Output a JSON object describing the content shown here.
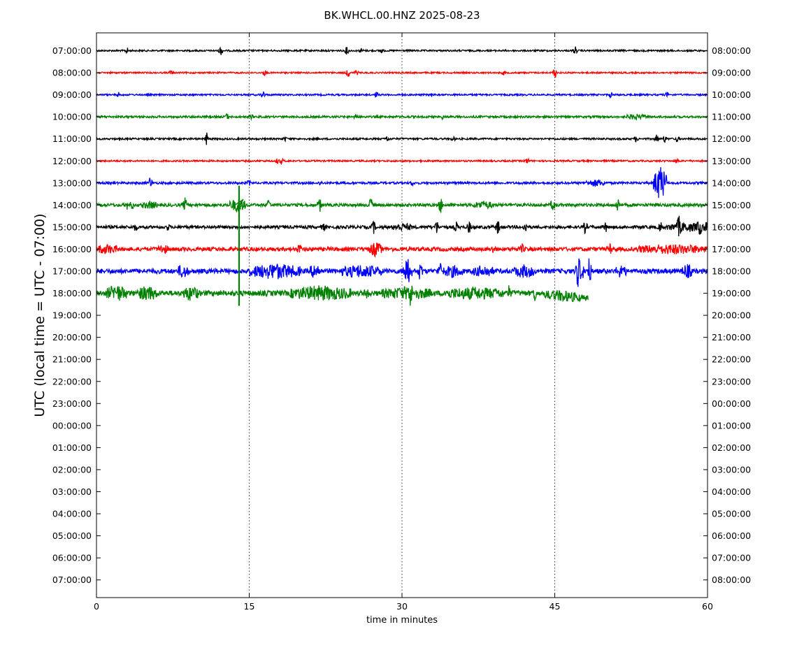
{
  "chart_data": {
    "type": "line",
    "title": "BK.WHCL.00.HNZ 2025-08-23",
    "xlabel": "time in minutes",
    "ylabel": "UTC (local time = UTC - 07:00)",
    "xlim": [
      0,
      60
    ],
    "x_ticks": [
      0,
      15,
      30,
      45,
      60
    ],
    "x_tick_labels": [
      "0",
      "15",
      "30",
      "45",
      "60"
    ],
    "grid": "vertical dotted lines at 15, 30, 45",
    "left_tick_labels": [
      "07:00:00",
      "08:00:00",
      "09:00:00",
      "10:00:00",
      "11:00:00",
      "12:00:00",
      "13:00:00",
      "14:00:00",
      "15:00:00",
      "16:00:00",
      "17:00:00",
      "18:00:00",
      "19:00:00",
      "20:00:00",
      "21:00:00",
      "22:00:00",
      "23:00:00",
      "00:00:00",
      "01:00:00",
      "02:00:00",
      "03:00:00",
      "04:00:00",
      "05:00:00",
      "06:00:00",
      "07:00:00"
    ],
    "right_tick_labels": [
      "08:00:00",
      "09:00:00",
      "10:00:00",
      "11:00:00",
      "12:00:00",
      "13:00:00",
      "14:00:00",
      "15:00:00",
      "16:00:00",
      "17:00:00",
      "18:00:00",
      "19:00:00",
      "20:00:00",
      "21:00:00",
      "22:00:00",
      "23:00:00",
      "00:00:00",
      "01:00:00",
      "02:00:00",
      "03:00:00",
      "04:00:00",
      "05:00:00",
      "06:00:00",
      "07:00:00",
      "08:00:00"
    ],
    "series": [
      {
        "row": 0,
        "color": "#000000",
        "end_minute": 60,
        "noise": 1.2,
        "spikes": [
          [
            3,
            4
          ],
          [
            12.2,
            7
          ],
          [
            24.6,
            6
          ],
          [
            26,
            3
          ],
          [
            47,
            6
          ],
          [
            28,
            3
          ]
        ],
        "bursts": []
      },
      {
        "row": 1,
        "color": "#ff0000",
        "end_minute": 60,
        "noise": 1.1,
        "spikes": [
          [
            7.3,
            3
          ],
          [
            16.5,
            4
          ],
          [
            24.7,
            7
          ],
          [
            25.5,
            4
          ],
          [
            40,
            3
          ],
          [
            45,
            8
          ]
        ],
        "bursts": []
      },
      {
        "row": 2,
        "color": "#0000ff",
        "end_minute": 60,
        "noise": 1.2,
        "spikes": [
          [
            2.2,
            3
          ],
          [
            16.3,
            7
          ],
          [
            27.5,
            4
          ],
          [
            33,
            3
          ],
          [
            50.5,
            4
          ],
          [
            56,
            3
          ]
        ],
        "bursts": []
      },
      {
        "row": 3,
        "color": "#008000",
        "end_minute": 60,
        "noise": 1.5,
        "spikes": [
          [
            12.8,
            4
          ],
          [
            15.2,
            3
          ],
          [
            25.5,
            4
          ],
          [
            34,
            3
          ]
        ],
        "bursts": [
          [
            52,
            54,
            3
          ]
        ]
      },
      {
        "row": 4,
        "color": "#000000",
        "end_minute": 60,
        "noise": 1.3,
        "spikes": [
          [
            10.8,
            9
          ],
          [
            18.5,
            3
          ],
          [
            28.5,
            4
          ],
          [
            35,
            3
          ],
          [
            53,
            4
          ],
          [
            55,
            6
          ],
          [
            55.8,
            5
          ],
          [
            57,
            4
          ]
        ],
        "bursts": []
      },
      {
        "row": 5,
        "color": "#ff0000",
        "end_minute": 60,
        "noise": 1.2,
        "spikes": [
          [
            17.8,
            4
          ],
          [
            18.2,
            3
          ],
          [
            42.3,
            4
          ],
          [
            57,
            3
          ]
        ],
        "bursts": []
      },
      {
        "row": 6,
        "color": "#0000ff",
        "end_minute": 60,
        "noise": 1.6,
        "spikes": [
          [
            5.3,
            9
          ],
          [
            15,
            4
          ],
          [
            22,
            3
          ],
          [
            31,
            3
          ]
        ],
        "bursts": [
          [
            48,
            50,
            4
          ],
          [
            54.7,
            56,
            25
          ]
        ]
      },
      {
        "row": 7,
        "color": "#008000",
        "end_minute": 60,
        "noise": 2.2,
        "spikes": [
          [
            3.5,
            6
          ],
          [
            8.7,
            10
          ],
          [
            16.9,
            8
          ],
          [
            21.9,
            10
          ],
          [
            26.9,
            12
          ],
          [
            33.8,
            11
          ],
          [
            44.8,
            11
          ],
          [
            51.2,
            10
          ],
          [
            3,
            5
          ]
        ],
        "bursts": [
          [
            4.5,
            6,
            4
          ],
          [
            13,
            14.7,
            8
          ],
          [
            37,
            39,
            4
          ]
        ]
      },
      {
        "row": 8,
        "color": "#000000",
        "end_minute": 60,
        "noise": 2.2,
        "spikes": [
          [
            3.8,
            5
          ],
          [
            7,
            4
          ],
          [
            22.3,
            5
          ],
          [
            27.2,
            9
          ],
          [
            33.4,
            9
          ],
          [
            35.3,
            7
          ],
          [
            36.6,
            8
          ],
          [
            39.4,
            10
          ],
          [
            42.1,
            8
          ],
          [
            48,
            9
          ],
          [
            50,
            7
          ],
          [
            55.4,
            7
          ],
          [
            57.2,
            12
          ],
          [
            59.2,
            11
          ],
          [
            59.8,
            5
          ]
        ],
        "bursts": [
          [
            29,
            31,
            4
          ],
          [
            56,
            60,
            5
          ]
        ]
      },
      {
        "row": 9,
        "color": "#ff0000",
        "end_minute": 60,
        "noise": 2.8,
        "spikes": [
          [
            19.9,
            8
          ],
          [
            39,
            6
          ],
          [
            41.8,
            6
          ],
          [
            50.4,
            7
          ]
        ],
        "bursts": [
          [
            0,
            2,
            5
          ],
          [
            6,
            7,
            5
          ],
          [
            26.8,
            28,
            9
          ],
          [
            53,
            60,
            5
          ]
        ]
      },
      {
        "row": 10,
        "color": "#0000ff",
        "end_minute": 60,
        "noise": 3.4,
        "spikes": [
          [
            30.5,
            18
          ],
          [
            31.8,
            14
          ],
          [
            33.7,
            13
          ],
          [
            47.3,
            16
          ],
          [
            48.4,
            20
          ]
        ],
        "bursts": [
          [
            8,
            9,
            8
          ],
          [
            15,
            20,
            9
          ],
          [
            21,
            22,
            9
          ],
          [
            24,
            28,
            7
          ],
          [
            30,
            31,
            10
          ],
          [
            34,
            36,
            6
          ],
          [
            37,
            39,
            6
          ],
          [
            41,
            43,
            7
          ],
          [
            47,
            48,
            10
          ],
          [
            51,
            52,
            7
          ],
          [
            57.5,
            58.5,
            8
          ]
        ]
      },
      {
        "row": 11,
        "color": "#008000",
        "end_minute": 48.3,
        "noise": 3.8,
        "spikes": [
          [
            26.5,
            9
          ],
          [
            30.8,
            13
          ],
          [
            40.5,
            8
          ],
          [
            43,
            9
          ]
        ],
        "bursts": [
          [
            1,
            3,
            9
          ],
          [
            4,
            6,
            8
          ],
          [
            8.5,
            10,
            8
          ],
          [
            19,
            25,
            8
          ],
          [
            28,
            33,
            6
          ],
          [
            34,
            40,
            6
          ],
          [
            44,
            47.5,
            5
          ]
        ],
        "drift_end": 7
      }
    ],
    "event": {
      "minute": 14,
      "upper_row": 6.25,
      "lower_row": 10.3
    }
  }
}
